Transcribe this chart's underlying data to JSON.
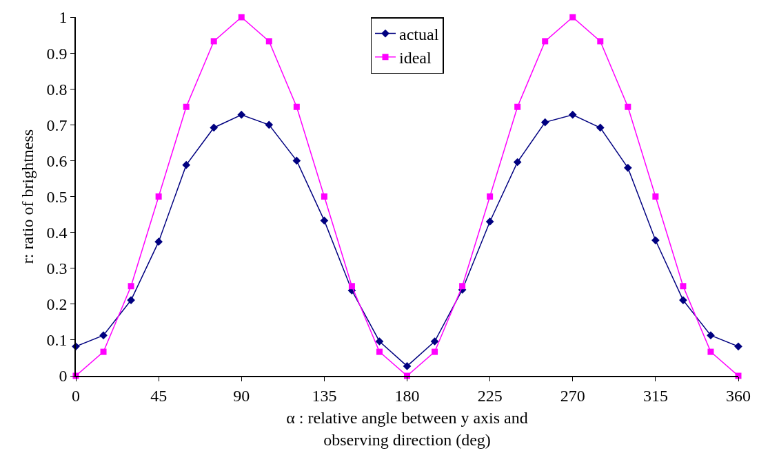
{
  "chart_data": {
    "type": "line",
    "xlabel": "α : relative angle between y axis and\nobserving direction (deg)",
    "ylabel": "r: ratio of brightness",
    "x": [
      0,
      15,
      30,
      45,
      60,
      75,
      90,
      105,
      120,
      135,
      150,
      165,
      180,
      195,
      210,
      225,
      240,
      255,
      270,
      285,
      300,
      315,
      330,
      345,
      360
    ],
    "series": [
      {
        "name": "actual",
        "color": "#000080",
        "marker": "diamond",
        "values": [
          0.082,
          0.113,
          0.211,
          0.374,
          0.588,
          0.692,
          0.728,
          0.7,
          0.6,
          0.433,
          0.238,
          0.096,
          0.027,
          0.096,
          0.24,
          0.43,
          0.596,
          0.707,
          0.728,
          0.692,
          0.58,
          0.378,
          0.211,
          0.113,
          0.082
        ]
      },
      {
        "name": "ideal",
        "color": "#ff00ff",
        "marker": "square",
        "values": [
          0,
          0.067,
          0.25,
          0.5,
          0.75,
          0.933,
          1,
          0.933,
          0.75,
          0.5,
          0.25,
          0.067,
          0,
          0.067,
          0.25,
          0.5,
          0.75,
          0.933,
          1,
          0.933,
          0.75,
          0.5,
          0.25,
          0.067,
          0
        ]
      }
    ],
    "xlim": [
      0,
      360
    ],
    "xticks": [
      0,
      45,
      90,
      135,
      180,
      225,
      270,
      315,
      360
    ],
    "ylim": [
      0,
      1
    ],
    "yticks": [
      0,
      0.1,
      0.2,
      0.3,
      0.4,
      0.5,
      0.6,
      0.7,
      0.8,
      0.9,
      1
    ],
    "grid": false,
    "legend": "top",
    "line_style": "solid"
  }
}
